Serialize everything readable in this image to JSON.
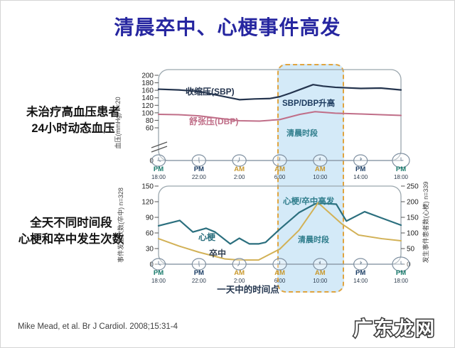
{
  "title": {
    "text": "清晨卒中、心梗事件高发",
    "color": "#2626a0"
  },
  "captions": {
    "bp": {
      "line1": "未治疗高血压患者",
      "line2": "24小时动态血压"
    },
    "events": {
      "line1": "全天不同时间段",
      "line2": "心梗和卒中发生次数"
    }
  },
  "footer": {
    "citation": "Mike Mead, et al. Br J Cardiol. 2008;15:31-4"
  },
  "watermark": {
    "text": "广东龙网"
  },
  "highlight": {
    "fill": "#d4eaf8",
    "border": "#e0a43f",
    "label": "清晨时段",
    "x_range_hours_from_1800": [
      12,
      18.3
    ]
  },
  "chart_data": [
    {
      "type": "line",
      "name": "untreated-hypertension-24h-ambulatory-bp",
      "ylabel": "血压(mmHg) n=20",
      "ylim": [
        0,
        200
      ],
      "yticks": [
        200,
        180,
        160,
        140,
        120,
        100,
        80,
        60
      ],
      "y_axis_break_to_zero": true,
      "x_is_hours_after_18_00": true,
      "xticks": [
        {
          "period": "PM",
          "time": "18:00"
        },
        {
          "period": "PM",
          "time": "22:00"
        },
        {
          "period": "AM",
          "time": "2:00"
        },
        {
          "period": "AM",
          "time": "6:00"
        },
        {
          "period": "AM",
          "time": "10:00"
        },
        {
          "period": "PM",
          "time": "14:00"
        },
        {
          "period": "PM",
          "time": "18:00"
        }
      ],
      "xtick_colors": {
        "am": "#c9992e",
        "pm": "#1d3f66",
        "pm_18": "#187a6b",
        "time": "#2e3d4f"
      },
      "series": [
        {
          "name": "收缩压(SBP)",
          "color": "#24344e",
          "x": [
            0,
            2,
            4,
            6,
            8,
            9.5,
            11,
            12,
            13,
            14,
            15.3,
            16.3,
            17.5,
            20,
            22,
            24
          ],
          "y": [
            163,
            161,
            157,
            146,
            135,
            137,
            138,
            143,
            152,
            162,
            175,
            171,
            168,
            165,
            166,
            161
          ]
        },
        {
          "name": "舒张压(DBP)",
          "color": "#c06e88",
          "x": [
            0,
            2,
            4,
            8,
            10,
            12,
            14,
            15.5,
            17.5,
            20,
            22,
            24
          ],
          "y": [
            96,
            95,
            92,
            79,
            78,
            82,
            96,
            103,
            99,
            97,
            95,
            93
          ]
        }
      ],
      "annotations": [
        {
          "text": "SBP/DBP升高",
          "color": "#1c3a5e"
        },
        {
          "text": "清晨时段",
          "color": "#2f7d8c"
        }
      ]
    },
    {
      "type": "line",
      "name": "mi-stroke-events-by-time-of-day",
      "xlabel": "一天中的时间点",
      "ylabel_left": "事件发生次数(卒中) n=328",
      "ylabel_right": "发生事件患者数(心梗) n=339",
      "ylim_left": [
        0,
        150
      ],
      "ylim_right": [
        0,
        250
      ],
      "yticks_left": [
        0,
        30,
        60,
        90,
        120,
        150
      ],
      "yticks_right": [
        0,
        50,
        100,
        150,
        200,
        250
      ],
      "xticks": [
        {
          "period": "PM",
          "time": "18:00"
        },
        {
          "period": "PM",
          "time": "22:00"
        },
        {
          "period": "AM",
          "time": "2:00"
        },
        {
          "period": "AM",
          "time": "6:00"
        },
        {
          "period": "AM",
          "time": "10:00"
        },
        {
          "period": "PM",
          "time": "14:00"
        },
        {
          "period": "PM",
          "time": "18:00"
        }
      ],
      "xtick_colors": {
        "am": "#c9992e",
        "pm": "#1d3f66",
        "pm_18": "#187a6b",
        "time": "#2e3d4f"
      },
      "series": [
        {
          "name": "心梗",
          "axis": "right",
          "color": "#2b6f7e",
          "label_color": "#2b6f7e",
          "x": [
            0,
            2.1,
            3.4,
            4.7,
            5.6,
            7.1,
            8,
            9,
            9.9,
            10.6,
            12,
            13.9,
            15.5,
            16.2,
            17.6,
            18.6,
            20.4,
            21.9,
            24
          ],
          "y": [
            123,
            140,
            103,
            115,
            103,
            65,
            83,
            65,
            65,
            70,
            112,
            165,
            193,
            195,
            192,
            138,
            168,
            150,
            125
          ]
        },
        {
          "name": "卒中",
          "axis": "left",
          "color": "#d2b156",
          "label_color": "#2e3d4f",
          "x": [
            0,
            2,
            4,
            6.6,
            8,
            9.9,
            12,
            13.9,
            15.8,
            18.1,
            19.8,
            22.1,
            24
          ],
          "y": [
            49,
            35,
            23,
            10,
            8,
            8,
            29,
            65,
            118,
            78,
            56,
            49,
            45
          ]
        }
      ],
      "annotations": [
        {
          "text": "心梗/卒中高发",
          "color": "#2f7d8c"
        },
        {
          "text": "清晨时段",
          "color": "#2f7d8c"
        }
      ]
    }
  ]
}
